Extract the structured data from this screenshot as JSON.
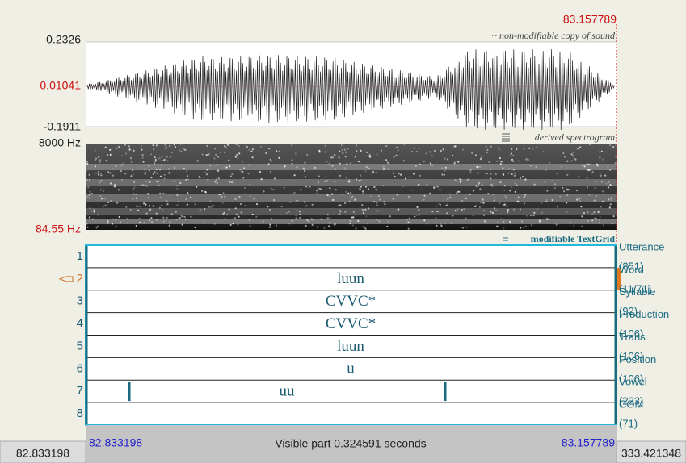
{
  "header": {
    "cursor_time": "83.157789"
  },
  "waveform": {
    "max": "0.2326",
    "cursor_value": "0.01041",
    "min": "-0.1911",
    "caption": "~ non-modifiable copy of sound"
  },
  "spectrogram": {
    "max": "8000 Hz",
    "min": "84.55 Hz",
    "caption": "derived spectrogram"
  },
  "textgrid": {
    "caption": "modifiable TextGrid",
    "tiers": [
      {
        "number": "1",
        "name": "Utterance",
        "count": "(351)"
      },
      {
        "number": "2",
        "name": "Word",
        "count": "(11/71)",
        "text": "luun"
      },
      {
        "number": "3",
        "name": "Syllable",
        "count": "(92)",
        "text": "CVVC*"
      },
      {
        "number": "4",
        "name": "Production",
        "count": "(106)",
        "text": "CVVC*"
      },
      {
        "number": "5",
        "name": "Trans",
        "count": "(106)",
        "text": "luun"
      },
      {
        "number": "6",
        "name": "Position",
        "count": "(106)",
        "text": "u"
      },
      {
        "number": "7",
        "name": "Vowel",
        "count": "(223)",
        "text": "uu"
      },
      {
        "number": "8",
        "name": "COM",
        "count": "(71)"
      }
    ]
  },
  "footer": {
    "start": "82.833198",
    "visible_start": "82.833198",
    "visible_label": "Visible part 0.324591 seconds",
    "visible_end": "83.157789",
    "end": "333.421348"
  }
}
